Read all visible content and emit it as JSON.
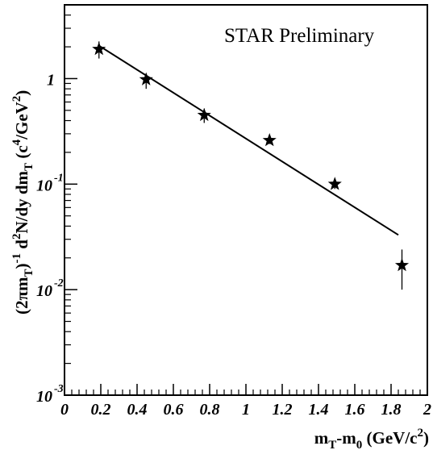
{
  "chart_data": {
    "type": "scatter",
    "annotation": "STAR Preliminary",
    "xlabel": {
      "base": "m",
      "sub1": "T",
      "mid": "-m",
      "sub2": "0",
      "unit_open": " (GeV/c",
      "unit_sup": "2",
      "unit_close": ")"
    },
    "ylabel": {
      "p1": "(2πm",
      "s1": "T",
      "p2": ")",
      "e1": "-1",
      "p3": " d",
      "e2": "2",
      "p4": "N/dy dm",
      "s2": "T",
      "p5": " (c",
      "e3": "4",
      "p6": "/GeV",
      "e4": "2",
      "p7": ")"
    },
    "xlim": [
      0,
      2
    ],
    "ylim": [
      0.001,
      5
    ],
    "yscale": "log",
    "x_ticks": [
      "0",
      "0.2",
      "0.4",
      "0.6",
      "0.8",
      "1",
      "1.2",
      "1.4",
      "1.6",
      "1.8",
      "2"
    ],
    "y_ticks": [
      {
        "value": 1,
        "base": "1",
        "exp": ""
      },
      {
        "value": 0.1,
        "base": "10",
        "exp": "-1"
      },
      {
        "value": 0.01,
        "base": "10",
        "exp": "-2"
      },
      {
        "value": 0.001,
        "base": "10",
        "exp": "-3"
      }
    ],
    "series": [
      {
        "marker": "star",
        "x": [
          0.19,
          0.45,
          0.77,
          1.13,
          1.49,
          1.86
        ],
        "y": [
          1.9,
          0.98,
          0.45,
          0.26,
          0.1,
          0.017
        ],
        "err_low": [
          0.35,
          0.18,
          0.07,
          0.02,
          0.01,
          0.007
        ],
        "err_high": [
          0.35,
          0.12,
          0.07,
          0.02,
          0.01,
          0.007
        ]
      }
    ],
    "fit_line": {
      "x": [
        0.19,
        1.84
      ],
      "y": [
        2.05,
        0.033
      ]
    }
  }
}
